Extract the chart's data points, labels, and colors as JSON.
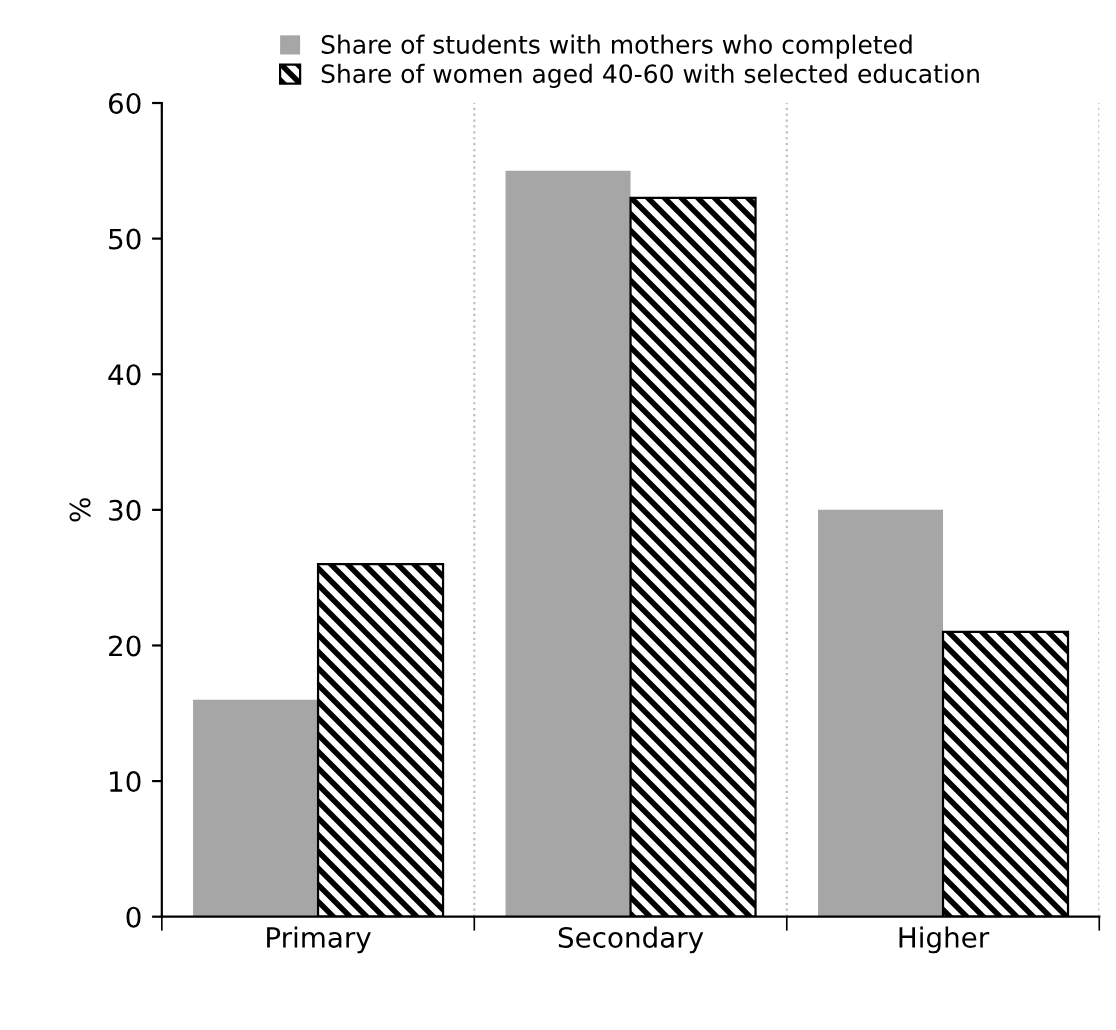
{
  "chart_data": {
    "type": "bar",
    "ylabel": "%",
    "categories": [
      "Primary",
      "Secondary",
      "Higher"
    ],
    "series": [
      {
        "name": "Share of students with mothers who completed",
        "color": "#a6a6a6",
        "values": [
          16,
          55,
          30
        ]
      },
      {
        "name": "Share of women aged 40-60 with selected education",
        "color": "#000000",
        "values": [
          26,
          53,
          21
        ]
      }
    ],
    "ylim": [
      0,
      60
    ],
    "yticks": [
      0,
      10,
      20,
      30,
      40,
      50,
      60
    ],
    "grid": "x",
    "legend": "top"
  }
}
